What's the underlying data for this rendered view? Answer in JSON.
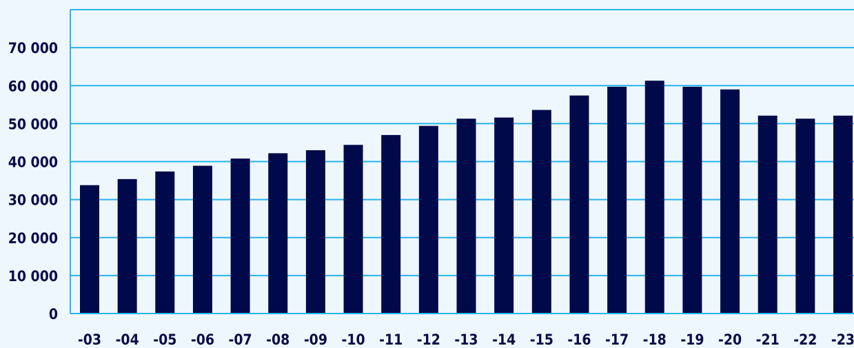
{
  "chart_data": {
    "type": "bar",
    "categories": [
      "-03",
      "-04",
      "-05",
      "-06",
      "-07",
      "-08",
      "-09",
      "-10",
      "-11",
      "-12",
      "-13",
      "-14",
      "-15",
      "-16",
      "-17",
      "-18",
      "-19",
      "-20",
      "-21",
      "-22",
      "-23"
    ],
    "values": [
      33800,
      35400,
      37400,
      38900,
      40800,
      42200,
      43000,
      44400,
      47000,
      49400,
      51300,
      51600,
      53600,
      57400,
      59700,
      61300,
      59700,
      59000,
      52100,
      51300,
      52100
    ],
    "title": "",
    "xlabel": "",
    "ylabel": "",
    "ylim": [
      0,
      80000
    ],
    "yticks": [
      0,
      10000,
      20000,
      30000,
      40000,
      50000,
      60000,
      70000
    ],
    "ytick_labels": [
      "0",
      "10 000",
      "20 000",
      "30 000",
      "40 000",
      "50 000",
      "60 000",
      "70 000"
    ],
    "grid": true,
    "legend": "none",
    "colors": {
      "background": "#eef7fd",
      "bar": "#000a4a",
      "grid": "#27b4ec",
      "text": "#0a0d47"
    }
  }
}
